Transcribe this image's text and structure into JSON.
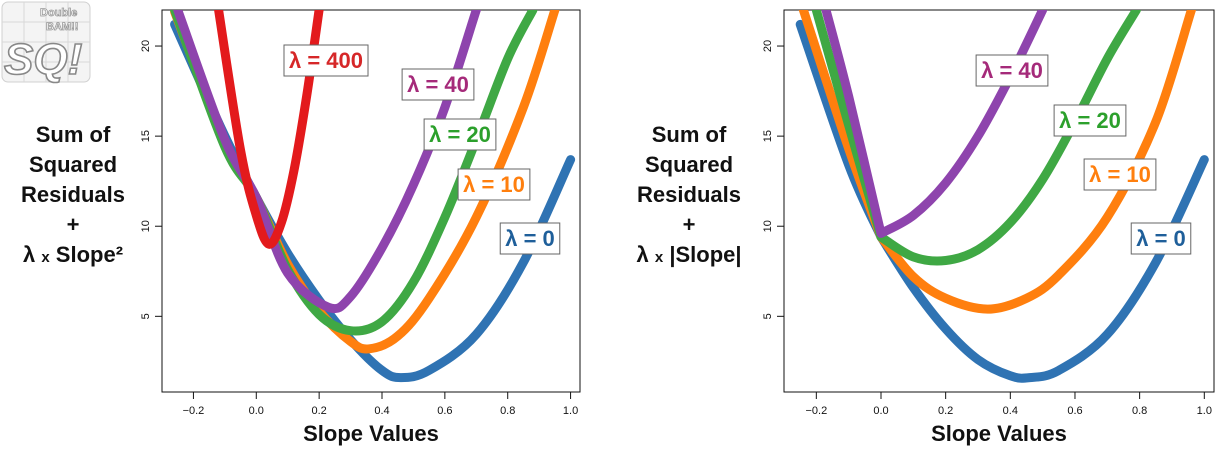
{
  "logo": {
    "line1": "Double",
    "line2": "BAM!!",
    "letters": "SQ!"
  },
  "colors": {
    "lambda_0": "#2f73b3",
    "lambda_10": "#ff7f0e",
    "lambda_20": "#3fa844",
    "lambda_40": "#8e44ad",
    "lambda_400": "#e31a1c",
    "label_lambda_0": "#1f5f9a",
    "label_lambda_10": "#ff7f0e",
    "label_lambda_20": "#2ca02c",
    "label_lambda_40": "#a52a7a",
    "label_lambda_400": "#d62728"
  },
  "chart_data": [
    {
      "type": "line",
      "penalty": "ridge",
      "ylabel_lines": [
        "Sum of",
        "Squared",
        "Residuals",
        "+",
        "λ",
        "x",
        "Slope²"
      ],
      "xlabel": "Slope Values",
      "xlim": [
        -0.3,
        1.03
      ],
      "ylim": [
        0.8,
        22
      ],
      "x_ticks": [
        -0.2,
        0.0,
        0.2,
        0.4,
        0.6,
        0.8,
        1.0
      ],
      "x_tick_labels": [
        "−0.2",
        "0.0",
        "0.2",
        "0.4",
        "0.6",
        "0.8",
        "1.0"
      ],
      "y_ticks": [
        5,
        10,
        15,
        20
      ],
      "y_tick_labels": [
        "5",
        "10",
        "15",
        "20"
      ],
      "series": [
        {
          "name": "λ = 0",
          "lambda": 0,
          "color_key": "lambda_0",
          "label_color_key": "label_lambda_0",
          "x": [
            -0.26,
            -0.1,
            0.0,
            0.1,
            0.2,
            0.3,
            0.4,
            0.46,
            0.55,
            0.7,
            0.85,
            1.0
          ],
          "y": [
            21.2,
            15.0,
            11.6,
            8.5,
            5.9,
            3.7,
            2.0,
            1.6,
            2.0,
            4.0,
            8.0,
            13.7
          ]
        },
        {
          "name": "λ = 10",
          "lambda": 10,
          "color_key": "lambda_10",
          "label_color_key": "label_lambda_10",
          "x": [
            -0.26,
            -0.1,
            0.0,
            0.1,
            0.2,
            0.3,
            0.36,
            0.45,
            0.55,
            0.7,
            0.85,
            0.95
          ],
          "y": [
            21.9,
            14.6,
            11.6,
            7.9,
            5.3,
            3.6,
            3.2,
            3.9,
            6.0,
            10.5,
            16.6,
            22.0
          ]
        },
        {
          "name": "λ = 20",
          "lambda": 20,
          "color_key": "lambda_20",
          "label_color_key": "label_lambda_20",
          "x": [
            -0.26,
            -0.1,
            0.0,
            0.1,
            0.2,
            0.3,
            0.4,
            0.5,
            0.6,
            0.7,
            0.8,
            0.88
          ],
          "y": [
            22.0,
            14.4,
            11.6,
            7.6,
            5.1,
            4.2,
            4.7,
            6.9,
            10.5,
            14.8,
            19.3,
            22.0
          ]
        },
        {
          "name": "λ = 40",
          "lambda": 40,
          "color_key": "lambda_40",
          "label_color_key": "label_lambda_40",
          "x": [
            -0.25,
            -0.1,
            0.0,
            0.1,
            0.23,
            0.3,
            0.4,
            0.5,
            0.6,
            0.7
          ],
          "y": [
            22.0,
            14.8,
            11.6,
            7.4,
            5.5,
            6.1,
            8.8,
            12.3,
            16.6,
            22.0
          ]
        },
        {
          "name": "λ = 400",
          "lambda": 400,
          "color_key": "lambda_400",
          "label_color_key": "label_lambda_400",
          "x": [
            -0.12,
            -0.05,
            0.0,
            0.04,
            0.08,
            0.12,
            0.16,
            0.2
          ],
          "y": [
            22.0,
            14.2,
            10.6,
            9.0,
            10.2,
            13.1,
            17.2,
            22.0
          ]
        }
      ],
      "labels": [
        {
          "text": "λ = 400",
          "series": "λ = 400"
        },
        {
          "text": "λ = 40",
          "series": "λ = 40"
        },
        {
          "text": "λ = 20",
          "series": "λ = 20"
        },
        {
          "text": "λ = 10",
          "series": "λ = 10"
        },
        {
          "text": "λ = 0",
          "series": "λ = 0"
        }
      ]
    },
    {
      "type": "line",
      "penalty": "lasso",
      "ylabel_lines": [
        "Sum of",
        "Squared",
        "Residuals",
        "+",
        "λ",
        "x",
        "|Slope|"
      ],
      "xlabel": "Slope Values",
      "xlim": [
        -0.3,
        1.03
      ],
      "ylim": [
        0.8,
        22
      ],
      "x_ticks": [
        -0.2,
        0.0,
        0.2,
        0.4,
        0.6,
        0.8,
        1.0
      ],
      "x_tick_labels": [
        "−0.2",
        "0.0",
        "0.2",
        "0.4",
        "0.6",
        "0.8",
        "1.0"
      ],
      "y_ticks": [
        5,
        10,
        15,
        20
      ],
      "y_tick_labels": [
        "5",
        "10",
        "15",
        "20"
      ],
      "series": [
        {
          "name": "λ = 0",
          "lambda": 0,
          "color_key": "lambda_0",
          "label_color_key": "label_lambda_0",
          "x": [
            -0.25,
            -0.1,
            0.0,
            0.1,
            0.2,
            0.3,
            0.4,
            0.46,
            0.55,
            0.7,
            0.85,
            1.0
          ],
          "y": [
            21.2,
            13.4,
            9.4,
            6.6,
            4.3,
            2.6,
            1.7,
            1.6,
            2.0,
            4.0,
            8.0,
            13.7
          ]
        },
        {
          "name": "λ = 10",
          "lambda": 10,
          "color_key": "lambda_10",
          "label_color_key": "label_lambda_10",
          "x": [
            -0.24,
            -0.1,
            0.0,
            0.1,
            0.2,
            0.33,
            0.45,
            0.55,
            0.7,
            0.85,
            0.96
          ],
          "y": [
            22.0,
            14.3,
            9.4,
            7.2,
            6.0,
            5.4,
            6.0,
            7.3,
            10.5,
            15.8,
            22.0
          ]
        },
        {
          "name": "λ = 20",
          "lambda": 20,
          "color_key": "lambda_20",
          "label_color_key": "label_lambda_20",
          "x": [
            -0.2,
            -0.1,
            0.0,
            0.1,
            0.2,
            0.3,
            0.4,
            0.5,
            0.6,
            0.7,
            0.79
          ],
          "y": [
            22.0,
            15.6,
            9.4,
            8.3,
            8.1,
            8.7,
            10.2,
            12.6,
            15.8,
            19.3,
            22.0
          ]
        },
        {
          "name": "λ = 40",
          "lambda": 40,
          "color_key": "lambda_40",
          "label_color_key": "label_lambda_40",
          "x": [
            -0.17,
            -0.1,
            0.0,
            0.1,
            0.2,
            0.3,
            0.4,
            0.5
          ],
          "y": [
            22.0,
            17.2,
            9.6,
            10.6,
            12.4,
            15.0,
            18.3,
            22.0
          ]
        }
      ],
      "labels": [
        {
          "text": "λ = 40",
          "series": "λ = 40"
        },
        {
          "text": "λ = 20",
          "series": "λ = 20"
        },
        {
          "text": "λ = 10",
          "series": "λ = 10"
        },
        {
          "text": "λ = 0",
          "series": "λ = 0"
        }
      ]
    }
  ]
}
